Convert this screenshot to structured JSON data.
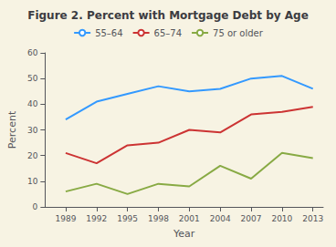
{
  "chart_data": {
    "type": "line",
    "title": "Figure 2. Percent with Mortgage Debt by Age",
    "xlabel": "Year",
    "ylabel": "Percent",
    "x": [
      1989,
      1992,
      1995,
      1998,
      2001,
      2004,
      2007,
      2010,
      2013
    ],
    "xlim": [
      1987,
      2014
    ],
    "xticks": [
      1989,
      1992,
      1995,
      1998,
      2001,
      2004,
      2007,
      2010,
      2013
    ],
    "ylim": [
      0,
      60
    ],
    "yticks": [
      0,
      10,
      20,
      30,
      40,
      50,
      60
    ],
    "series": [
      {
        "name": "55–64",
        "color": "#3399ff",
        "values": [
          34,
          41,
          44,
          47,
          45,
          46,
          50,
          51,
          46
        ]
      },
      {
        "name": "65–74",
        "color": "#cc3333",
        "values": [
          21,
          17,
          24,
          25,
          30,
          29,
          36,
          37,
          39
        ]
      },
      {
        "name": "75 or older",
        "color": "#88aa44",
        "values": [
          6,
          9,
          5,
          9,
          8,
          16,
          11,
          21,
          19
        ]
      }
    ],
    "grid": false,
    "legend": "top"
  }
}
